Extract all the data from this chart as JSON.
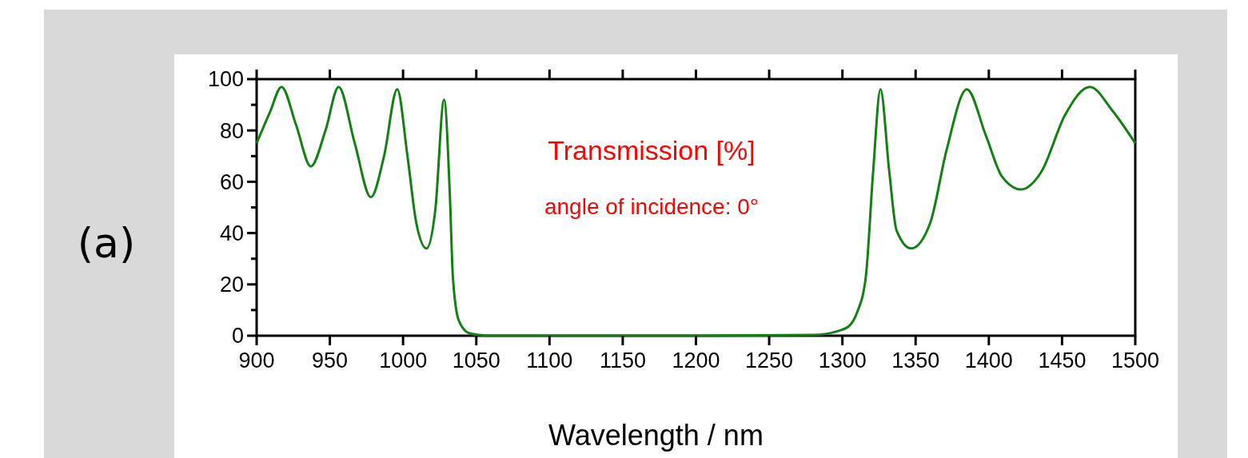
{
  "chart_data": {
    "type": "line",
    "xlabel": "Wavelength / nm",
    "annotations": [
      "Transmission [%]",
      "angle of incidence: 0°",
      "(a)"
    ],
    "x": [
      900,
      909,
      917,
      927,
      937,
      947,
      956,
      967,
      978,
      987,
      996,
      1003,
      1009,
      1016,
      1022,
      1028,
      1032,
      1034,
      1038,
      1045,
      1052,
      1060,
      1100,
      1200,
      1280,
      1298,
      1305,
      1310,
      1316,
      1321,
      1326,
      1332,
      1337,
      1347,
      1360,
      1371,
      1385,
      1398,
      1409,
      1422,
      1436,
      1452,
      1469,
      1484,
      1500
    ],
    "series": [
      {
        "color": "#138013",
        "values": [
          75,
          87,
          97,
          82,
          66,
          80,
          97,
          75,
          54,
          70,
          96,
          70,
          44,
          34,
          49,
          92,
          54,
          23,
          6,
          1,
          0.3,
          0,
          0,
          0,
          0.3,
          2,
          4,
          9,
          23,
          64,
          96,
          64,
          41,
          34,
          44,
          72,
          96,
          78,
          62,
          57,
          64,
          86,
          97,
          88,
          75
        ]
      }
    ],
    "xlim": [
      900,
      1500
    ],
    "xticks": [
      900,
      950,
      1000,
      1050,
      1100,
      1150,
      1200,
      1250,
      1300,
      1350,
      1400,
      1450,
      1500
    ],
    "ylim": [
      0,
      100
    ],
    "yticks": [
      0,
      {
        "value": 10,
        "label": null
      },
      20,
      {
        "value": 30,
        "label": null
      },
      40,
      {
        "value": 50,
        "label": null
      },
      60,
      {
        "value": 70,
        "label": null
      },
      80,
      {
        "value": 90,
        "label": null
      },
      100
    ],
    "grid": false,
    "line_style": "solid"
  }
}
